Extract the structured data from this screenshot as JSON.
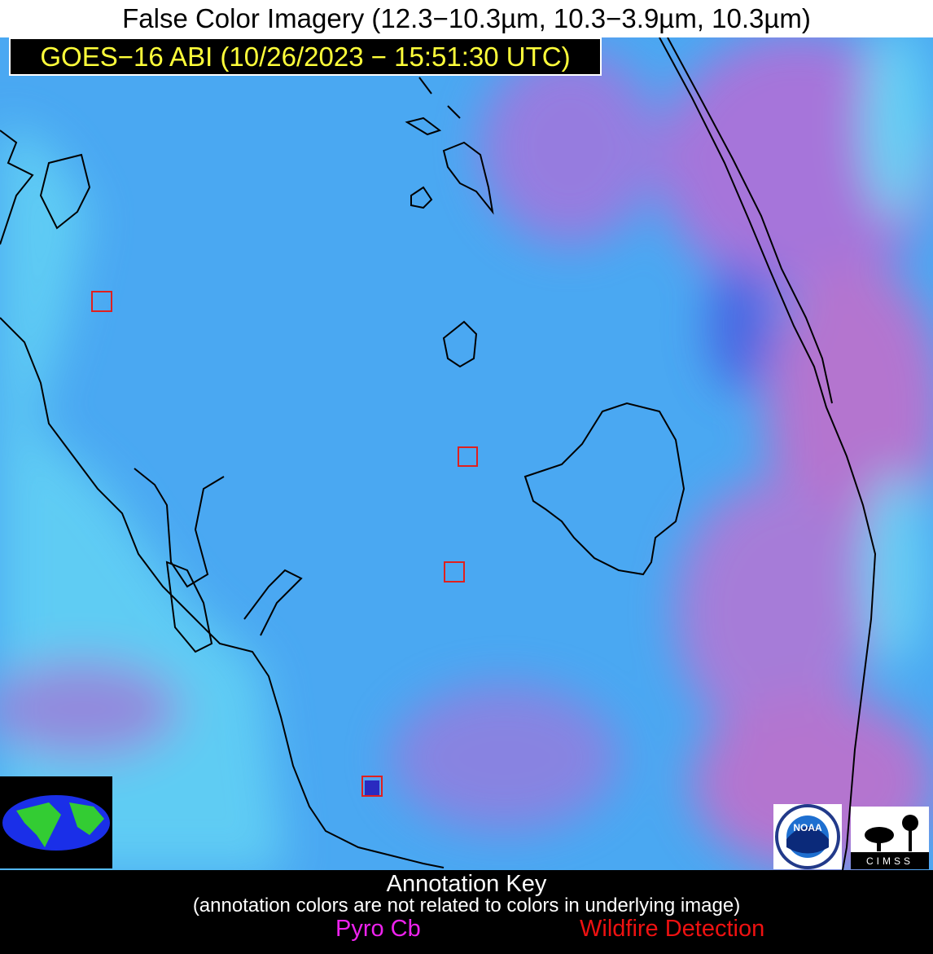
{
  "header": {
    "title": "False Color Imagery (12.3−10.3µm, 10.3−3.9µm, 10.3µm)",
    "subtitle": "GOES−16 ABI (10/26/2023 − 15:51:30 UTC)"
  },
  "key": {
    "title": "Annotation Key",
    "note": "(annotation colors are not related to colors in underlying image)",
    "items": [
      "Pyro Cb",
      "Wildfire Detection"
    ]
  },
  "logos": {
    "noaa": "NOAA",
    "cimss": "CIMSS"
  }
}
